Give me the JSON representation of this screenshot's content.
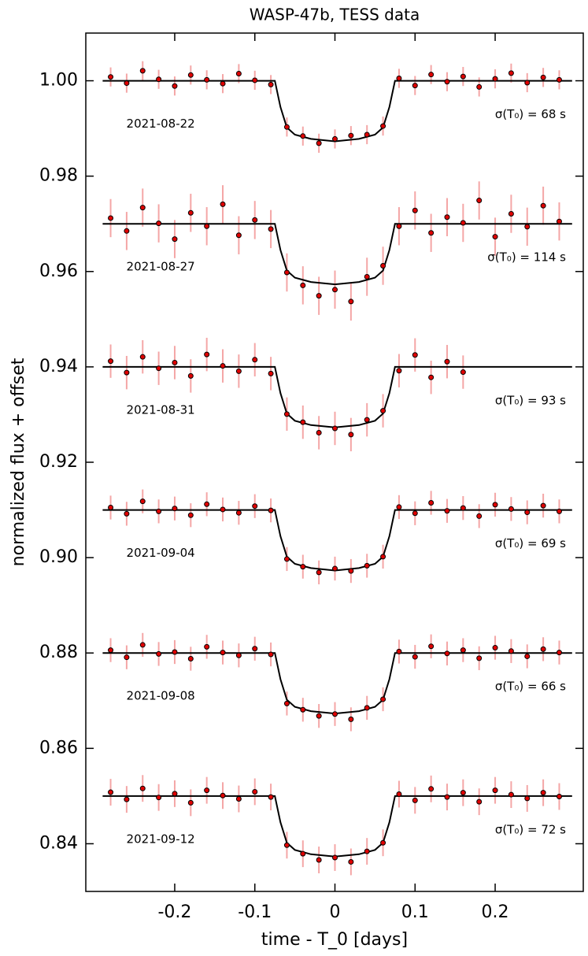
{
  "chart_data": {
    "type": "scatter",
    "title": "WASP-47b, TESS data",
    "xlabel": "time - T_0 [days]",
    "ylabel": "normalized flux + offset",
    "xlim": [
      -0.311,
      0.31
    ],
    "ylim": [
      0.83,
      1.01
    ],
    "xticks": [
      -0.2,
      -0.1,
      0,
      0.1,
      0.2
    ],
    "yticks": [
      0.84,
      0.86,
      0.88,
      {
        "value": 0.9,
        "label": "0.90"
      },
      0.92,
      0.94,
      0.96,
      0.98,
      {
        "value": 1.0,
        "label": "1.00"
      }
    ],
    "marker_color": "#e00000",
    "error_color": "#f4a6a6",
    "model_color": "#000000",
    "x": [
      -0.28,
      -0.26,
      -0.24,
      -0.22,
      -0.2,
      -0.18,
      -0.16,
      -0.14,
      -0.12,
      -0.1,
      -0.08,
      -0.06,
      -0.04,
      -0.02,
      0,
      0.02,
      0.04,
      0.06,
      0.08,
      0.1,
      0.12,
      0.14,
      0.16,
      0.18,
      0.2,
      0.22,
      0.24,
      0.26,
      0.28
    ],
    "model_x": [
      -0.29,
      -0.075,
      -0.068,
      -0.06,
      -0.05,
      -0.03,
      0,
      0.03,
      0.05,
      0.06,
      0.068,
      0.075,
      0.296
    ],
    "series": [
      {
        "name": "2021-08-22",
        "annotation": "σ(T₀) = 68 s",
        "error": 0.002,
        "values": [
          1.0008,
          0.9995,
          1.0021,
          1.0003,
          0.9989,
          1.0012,
          1.0002,
          0.9994,
          1.0015,
          1.0001,
          0.9992,
          0.9903,
          0.9884,
          0.9869,
          0.9878,
          0.9885,
          0.9887,
          0.9905,
          1.0005,
          0.999,
          1.0013,
          0.9998,
          1.0009,
          0.9987,
          1.0004,
          1.0016,
          0.9996,
          1.0007,
          1.0002
        ],
        "model": [
          1.0,
          1.0,
          0.9945,
          0.9902,
          0.9887,
          0.9878,
          0.9873,
          0.9878,
          0.9887,
          0.9902,
          0.9945,
          1.0,
          1.0
        ]
      },
      {
        "name": "2021-08-27",
        "annotation": "σ(T₀) = 114 s",
        "error": 0.004,
        "values": [
          0.9712,
          0.9685,
          0.9734,
          0.9701,
          0.9668,
          0.9723,
          0.9695,
          0.9741,
          0.9676,
          0.9708,
          0.9689,
          0.9598,
          0.9571,
          0.9549,
          0.9562,
          0.9537,
          0.9589,
          0.9612,
          0.9695,
          0.9728,
          0.9681,
          0.9714,
          0.9702,
          0.9749,
          0.9673,
          0.9721,
          0.9694,
          0.9738,
          0.9705
        ],
        "model": [
          0.97,
          0.97,
          0.9645,
          0.9602,
          0.9587,
          0.9578,
          0.9573,
          0.9578,
          0.9587,
          0.9602,
          0.9645,
          0.97,
          0.97
        ]
      },
      {
        "name": "2021-08-31",
        "annotation": "σ(T₀) = 93 s",
        "error": 0.0035,
        "values": [
          0.9412,
          0.9388,
          0.9421,
          0.9397,
          0.9409,
          0.9381,
          0.9426,
          0.9402,
          0.9391,
          0.9415,
          0.9386,
          0.9301,
          0.9284,
          0.9262,
          0.9271,
          0.9258,
          0.9289,
          0.9308,
          0.9392,
          0.9425,
          0.9378,
          0.9411,
          0.9389,
          null,
          null,
          null,
          null,
          null,
          null
        ],
        "model": [
          0.94,
          0.94,
          0.9345,
          0.9302,
          0.9287,
          0.9278,
          0.9273,
          0.9278,
          0.9287,
          0.9302,
          0.9345,
          0.94,
          0.94
        ]
      },
      {
        "name": "2021-09-04",
        "annotation": "σ(T₀) = 69 s",
        "error": 0.0025,
        "values": [
          0.9105,
          0.9092,
          0.9118,
          0.9097,
          0.9103,
          0.9089,
          0.9112,
          0.9101,
          0.9094,
          0.9108,
          0.9099,
          0.8997,
          0.8981,
          0.8969,
          0.8977,
          0.8972,
          0.8983,
          0.9002,
          0.9106,
          0.9093,
          0.9115,
          0.9098,
          0.9104,
          0.9087,
          0.9111,
          0.9102,
          0.9095,
          0.9109,
          0.9097
        ],
        "model": [
          0.91,
          0.91,
          0.9045,
          0.9002,
          0.8987,
          0.8978,
          0.8973,
          0.8978,
          0.8987,
          0.9002,
          0.9045,
          0.91,
          0.91
        ]
      },
      {
        "name": "2021-09-08",
        "annotation": "σ(T₀) = 66 s",
        "error": 0.0025,
        "values": [
          0.8806,
          0.8791,
          0.8817,
          0.8798,
          0.8802,
          0.8788,
          0.8813,
          0.8801,
          0.8795,
          0.8809,
          0.8797,
          0.8694,
          0.8681,
          0.8668,
          0.8672,
          0.8661,
          0.8685,
          0.8703,
          0.8803,
          0.8792,
          0.8814,
          0.8799,
          0.8806,
          0.8789,
          0.8811,
          0.8804,
          0.8793,
          0.8808,
          0.8801
        ],
        "model": [
          0.88,
          0.88,
          0.8745,
          0.8702,
          0.8687,
          0.8678,
          0.8673,
          0.8678,
          0.8687,
          0.8702,
          0.8745,
          0.88,
          0.88
        ]
      },
      {
        "name": "2021-09-12",
        "annotation": "σ(T₀) = 72 s",
        "error": 0.0028,
        "values": [
          0.8508,
          0.8493,
          0.8516,
          0.8497,
          0.8505,
          0.8486,
          0.8512,
          0.8501,
          0.8494,
          0.8509,
          0.8498,
          0.8397,
          0.8379,
          0.8366,
          0.8371,
          0.8362,
          0.8384,
          0.8402,
          0.8504,
          0.8491,
          0.8515,
          0.8498,
          0.8507,
          0.8488,
          0.8512,
          0.8503,
          0.8495,
          0.8507,
          0.8499
        ],
        "model": [
          0.85,
          0.85,
          0.8445,
          0.8402,
          0.8387,
          0.8378,
          0.8373,
          0.8378,
          0.8387,
          0.8402,
          0.8445,
          0.85,
          0.85
        ]
      }
    ]
  }
}
